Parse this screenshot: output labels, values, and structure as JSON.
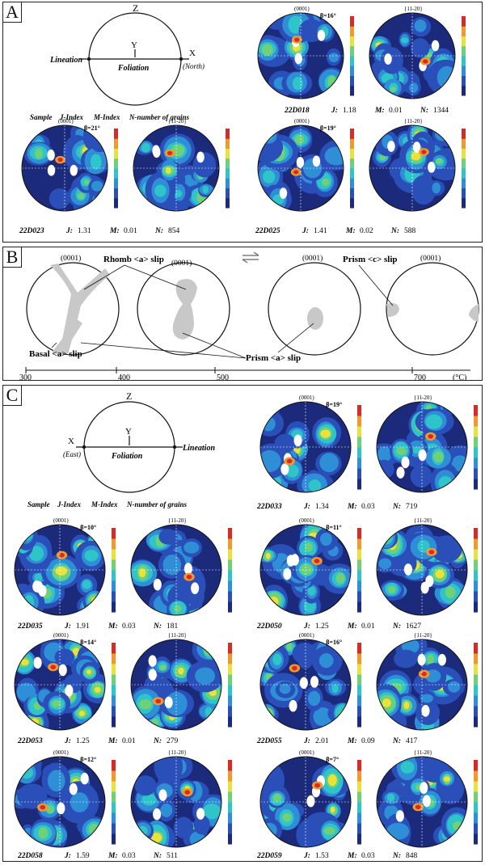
{
  "panels": {
    "A": {
      "label": "A",
      "schematic": {
        "z": "Z",
        "y": "Y",
        "left": "Lineation",
        "center": "Foliation",
        "right": "X",
        "right_sub": "(North)"
      },
      "legend": {
        "sample": "Sample",
        "j": "J-Index",
        "m": "M-Index",
        "n": "N-number of grains"
      },
      "samples": [
        {
          "id": "22D018",
          "J": "1.18",
          "M": "0.01",
          "N": "1344",
          "beta": "β=16°"
        },
        {
          "id": "22D023",
          "J": "1.31",
          "M": "0.01",
          "N": "854",
          "beta": "β=21°"
        },
        {
          "id": "22D025",
          "J": "1.41",
          "M": "0.02",
          "N": "588",
          "beta": "β=19°"
        }
      ]
    },
    "B": {
      "label": "B",
      "mechanisms": {
        "rhomb": "Rhomb <a> slip",
        "basal": "Basal <a> slip",
        "prism_a": "Prism <a> slip",
        "prism_c": "Prism <c> slip"
      },
      "plane": "(0001)",
      "temps": [
        "300",
        "400",
        "500",
        "700"
      ],
      "unit": "(°C)"
    },
    "C": {
      "label": "C",
      "schematic": {
        "z": "Z",
        "y": "Y",
        "left": "X",
        "left_sub": "(East)",
        "center": "Foliation",
        "right": "Lineation"
      },
      "legend": {
        "sample": "Sample",
        "j": "J-Index",
        "m": "M-Index",
        "n": "N-number of grains"
      },
      "samples": [
        {
          "id": "22D033",
          "J": "1.34",
          "M": "0.03",
          "N": "719",
          "beta": "β=19°"
        },
        {
          "id": "22D035",
          "J": "1.91",
          "M": "0.03",
          "N": "181",
          "beta": "β=10°"
        },
        {
          "id": "22D050",
          "J": "1.25",
          "M": "0.01",
          "N": "1627",
          "beta": "β=11°"
        },
        {
          "id": "22D053",
          "J": "1.25",
          "M": "0.01",
          "N": "279",
          "beta": "β=14°"
        },
        {
          "id": "22D055",
          "J": "2.01",
          "M": "0.09",
          "N": "417",
          "beta": "β=16°"
        },
        {
          "id": "22D058",
          "J": "1.59",
          "M": "0.03",
          "N": "511",
          "beta": "β=12°"
        },
        {
          "id": "22D059",
          "J": "1.53",
          "M": "0.03",
          "N": "848",
          "beta": "β=7°"
        }
      ]
    }
  },
  "labels": {
    "J": "J:",
    "M": "M:",
    "N": "N:",
    "c_axis": "(0001)",
    "a_axis": "{11-20}"
  },
  "colors": {
    "low": "#1a237e",
    "mid": "#26c6da",
    "high": "#e53935",
    "plane_fill": "#c8c8c8"
  }
}
